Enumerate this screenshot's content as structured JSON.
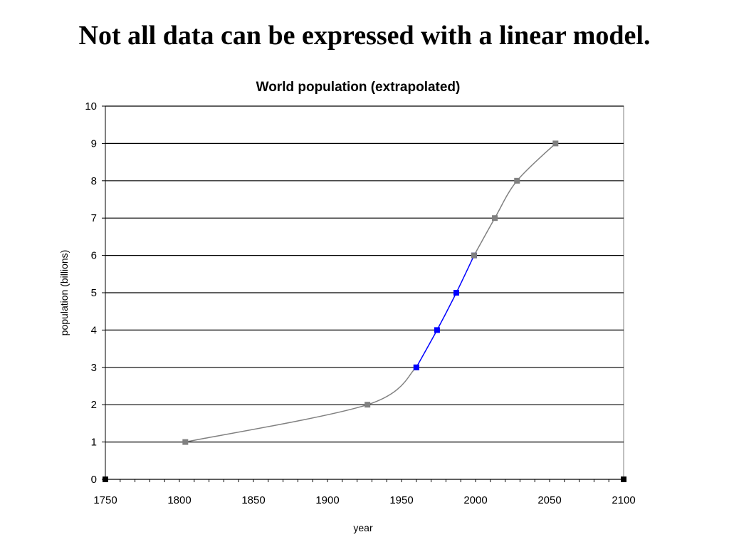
{
  "slide": {
    "heading": "Not all data can be expressed with a linear model."
  },
  "chart_data": {
    "type": "line",
    "title": "World population (extrapolated)",
    "xlabel": "year",
    "ylabel": "population (billions)",
    "xlim": [
      1750,
      2100
    ],
    "ylim": [
      0,
      10
    ],
    "x_ticks": [
      1750,
      1800,
      1850,
      1900,
      1950,
      2000,
      2050,
      2100
    ],
    "y_ticks": [
      0,
      1,
      2,
      3,
      4,
      5,
      6,
      7,
      8,
      9,
      10
    ],
    "grid": "horizontal",
    "series": [
      {
        "color": "#808080",
        "x": [
          1804,
          1927,
          1960
        ],
        "y": [
          1,
          2,
          3
        ]
      },
      {
        "color": "#0000ff",
        "x": [
          1960,
          1974,
          1987,
          1999
        ],
        "y": [
          3,
          4,
          5,
          6
        ]
      },
      {
        "color": "#808080",
        "x": [
          1999,
          2013,
          2028,
          2054
        ],
        "y": [
          6,
          7,
          8,
          9
        ]
      }
    ]
  }
}
